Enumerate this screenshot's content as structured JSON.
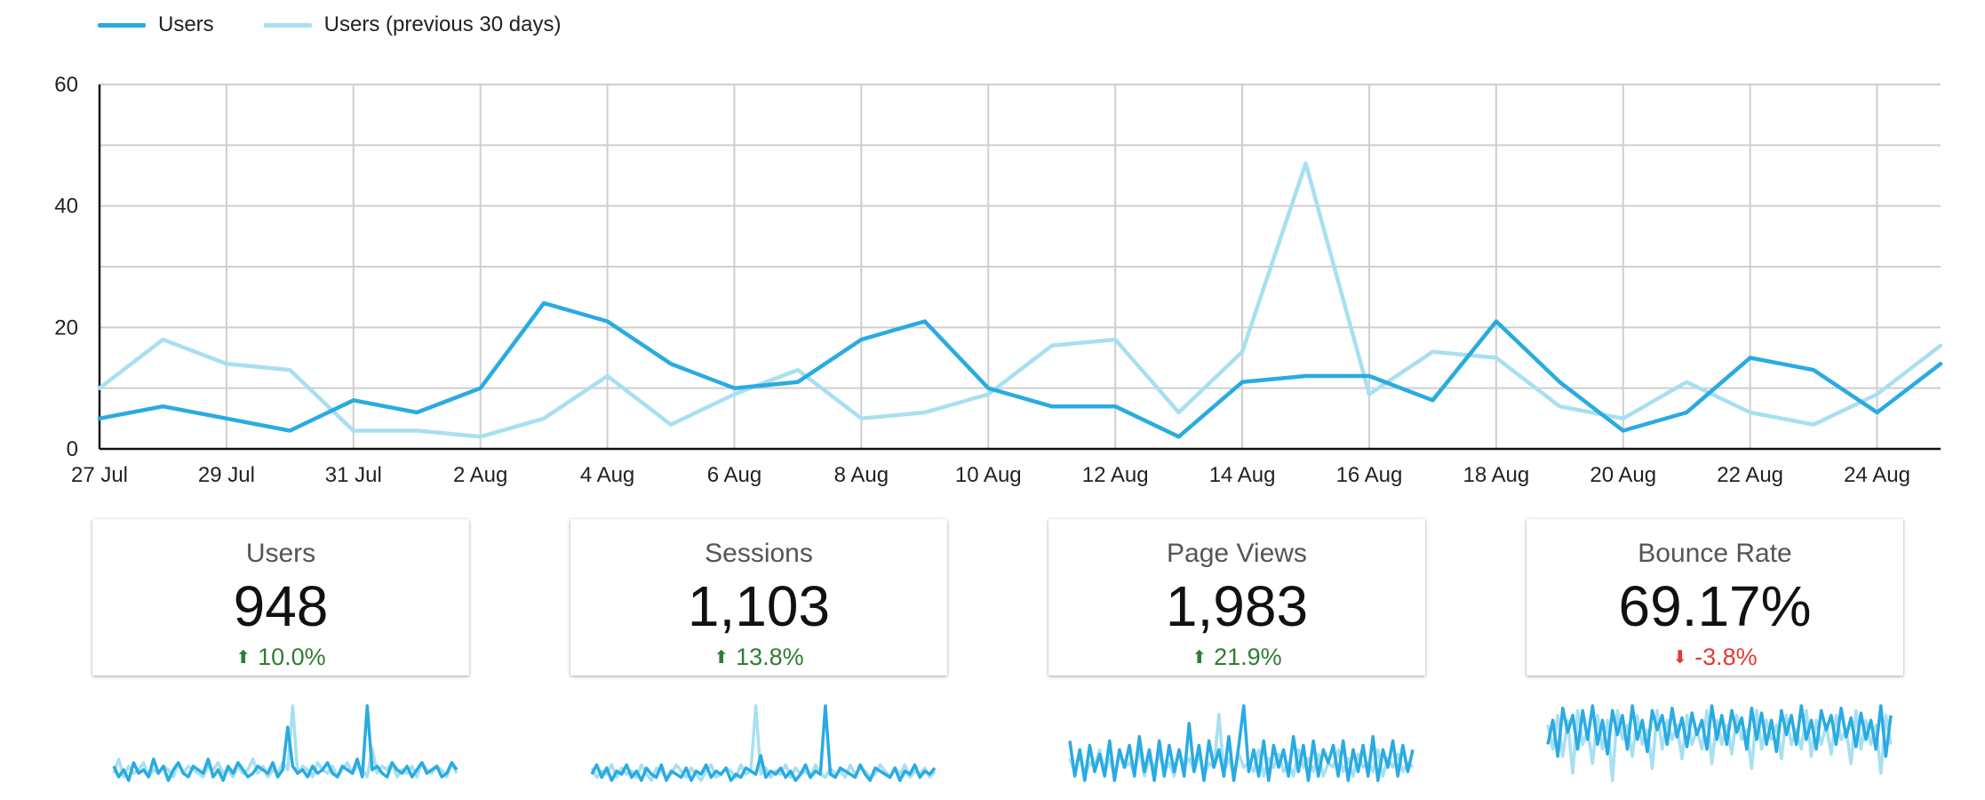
{
  "legend": {
    "series_1": "Users",
    "series_2": "Users (previous 30 days)"
  },
  "colors": {
    "current": "#29abe2",
    "previous": "#a8dff2",
    "grid": "#cfcfcf",
    "axis": "#111111",
    "up": "#2e7d32",
    "down": "#e53935"
  },
  "chart_data": {
    "type": "line",
    "title": "",
    "xlabel": "",
    "ylabel": "",
    "ylim": [
      0,
      60
    ],
    "y_ticks": [
      0,
      20,
      40,
      60
    ],
    "grid": true,
    "legend_position": "top-left",
    "x_labels": [
      "27 Jul",
      "",
      "29 Jul",
      "",
      "31 Jul",
      "",
      "2 Aug",
      "",
      "4 Aug",
      "",
      "6 Aug",
      "",
      "8 Aug",
      "",
      "10 Aug",
      "",
      "12 Aug",
      "",
      "14 Aug",
      "",
      "16 Aug",
      "",
      "18 Aug",
      "",
      "20 Aug",
      "",
      "22 Aug",
      "",
      "24 Aug",
      ""
    ],
    "series": [
      {
        "name": "Users",
        "values": [
          5,
          7,
          5,
          3,
          8,
          6,
          10,
          24,
          21,
          14,
          10,
          11,
          18,
          21,
          10,
          7,
          7,
          2,
          11,
          12,
          12,
          8,
          21,
          11,
          3,
          6,
          15,
          13,
          6,
          14
        ]
      },
      {
        "name": "Users (previous 30 days)",
        "values": [
          10,
          18,
          14,
          13,
          3,
          3,
          2,
          5,
          12,
          4,
          9,
          13,
          5,
          6,
          9,
          17,
          18,
          6,
          16,
          47,
          9,
          16,
          15,
          7,
          5,
          11,
          6,
          4,
          9,
          17
        ]
      }
    ]
  },
  "scorecards": [
    {
      "title": "Users",
      "value": "948",
      "delta": "10.0%",
      "direction": "up",
      "arrow": "⬆"
    },
    {
      "title": "Sessions",
      "value": "1,103",
      "delta": "13.8%",
      "direction": "up",
      "arrow": "⬆"
    },
    {
      "title": "Page Views",
      "value": "1,983",
      "delta": "21.9%",
      "direction": "up",
      "arrow": "⬆"
    },
    {
      "title": "Bounce Rate",
      "value": "69.17%",
      "delta": "-3.8%",
      "direction": "down",
      "arrow": "⬇"
    }
  ],
  "sparklines": [
    {
      "current": [
        7,
        4,
        6,
        3,
        8,
        5,
        6,
        4,
        9,
        5,
        7,
        3,
        6,
        8,
        5,
        4,
        7,
        6,
        5,
        9,
        4,
        6,
        3,
        7,
        5,
        8,
        6,
        4,
        5,
        7,
        6,
        5,
        8,
        4,
        6,
        18,
        7,
        5,
        6,
        4,
        7,
        5,
        6,
        8,
        5,
        4,
        7,
        6,
        5,
        9,
        4,
        24,
        6,
        7,
        5,
        4,
        8,
        6,
        5,
        7,
        4,
        6,
        8,
        5,
        6,
        7,
        4,
        5,
        8,
        6
      ],
      "previous": [
        5,
        9,
        4,
        7,
        5,
        6,
        8,
        4,
        6,
        5,
        7,
        6,
        4,
        8,
        5,
        7,
        6,
        5,
        4,
        7,
        6,
        8,
        5,
        6,
        4,
        7,
        5,
        6,
        9,
        5,
        7,
        4,
        6,
        5,
        8,
        6,
        24,
        5,
        7,
        6,
        4,
        8,
        6,
        5,
        7,
        4,
        6,
        8,
        5,
        7,
        6,
        4,
        12,
        5,
        7,
        6,
        8,
        4,
        6,
        5,
        7,
        4,
        8,
        6,
        5,
        7,
        6,
        4,
        8,
        5
      ]
    },
    {
      "current": [
        6,
        9,
        5,
        8,
        4,
        7,
        6,
        9,
        5,
        7,
        4,
        8,
        6,
        5,
        9,
        4,
        7,
        6,
        5,
        8,
        4,
        7,
        6,
        9,
        5,
        7,
        6,
        8,
        4,
        6,
        5,
        8,
        7,
        6,
        12,
        5,
        7,
        6,
        8,
        5,
        7,
        4,
        6,
        9,
        5,
        7,
        6,
        28,
        6,
        5,
        8,
        7,
        6,
        5,
        9,
        6,
        4,
        8,
        7,
        6,
        5,
        8,
        4,
        7,
        6,
        9,
        5,
        7,
        6,
        8
      ],
      "previous": [
        8,
        5,
        7,
        6,
        9,
        5,
        8,
        6,
        7,
        5,
        9,
        6,
        4,
        8,
        7,
        5,
        6,
        9,
        7,
        5,
        8,
        6,
        4,
        7,
        9,
        5,
        6,
        8,
        7,
        5,
        9,
        6,
        7,
        28,
        6,
        8,
        5,
        7,
        6,
        9,
        5,
        8,
        6,
        7,
        5,
        9,
        6,
        5,
        8,
        6,
        7,
        5,
        9,
        6,
        8,
        7,
        5,
        6,
        9,
        7,
        5,
        8,
        6,
        9,
        5,
        7,
        6,
        8,
        5,
        7
      ]
    },
    {
      "current": [
        14,
        6,
        12,
        5,
        13,
        7,
        11,
        6,
        14,
        5,
        12,
        8,
        13,
        6,
        15,
        7,
        12,
        5,
        14,
        6,
        13,
        7,
        12,
        6,
        18,
        7,
        13,
        5,
        14,
        8,
        12,
        6,
        15,
        5,
        13,
        22,
        7,
        12,
        6,
        14,
        5,
        13,
        8,
        12,
        6,
        15,
        7,
        13,
        5,
        14,
        6,
        12,
        9,
        13,
        6,
        14,
        5,
        12,
        7,
        13,
        6,
        15,
        5,
        12,
        8,
        14,
        6,
        13,
        7,
        12
      ],
      "previous": [
        10,
        7,
        11,
        6,
        9,
        8,
        12,
        7,
        10,
        6,
        11,
        8,
        9,
        7,
        12,
        6,
        10,
        8,
        11,
        7,
        9,
        6,
        12,
        8,
        10,
        7,
        11,
        6,
        9,
        8,
        20,
        7,
        10,
        6,
        11,
        8,
        9,
        7,
        12,
        6,
        10,
        8,
        11,
        7,
        9,
        6,
        12,
        8,
        10,
        7,
        11,
        6,
        9,
        8,
        12,
        7,
        10,
        6,
        11,
        8,
        9,
        7,
        12,
        6,
        10,
        8,
        11,
        7,
        9,
        8
      ]
    },
    {
      "current": [
        60,
        70,
        55,
        75,
        65,
        72,
        58,
        74,
        62,
        76,
        60,
        70,
        56,
        74,
        64,
        72,
        58,
        76,
        62,
        70,
        57,
        74,
        66,
        72,
        60,
        75,
        63,
        71,
        59,
        73,
        64,
        70,
        58,
        76,
        62,
        72,
        60,
        74,
        65,
        71,
        58,
        75,
        62,
        73,
        60,
        70,
        57,
        74,
        64,
        72,
        60,
        76,
        62,
        70,
        58,
        74,
        66,
        72,
        60,
        75,
        63,
        71,
        59,
        73,
        62,
        70,
        58,
        76,
        55,
        72
      ],
      "previous": [
        68,
        58,
        72,
        55,
        70,
        48,
        74,
        60,
        66,
        52,
        72,
        58,
        70,
        45,
        74,
        62,
        68,
        55,
        72,
        60,
        66,
        50,
        74,
        58,
        70,
        62,
        68,
        54,
        72,
        60,
        66,
        58,
        74,
        52,
        70,
        60,
        68,
        56,
        72,
        62,
        66,
        50,
        74,
        58,
        70,
        62,
        68,
        54,
        72,
        60,
        66,
        58,
        74,
        55,
        70,
        60,
        68,
        56,
        72,
        62,
        66,
        52,
        74,
        58,
        70,
        60,
        68,
        48,
        72,
        60
      ]
    }
  ]
}
